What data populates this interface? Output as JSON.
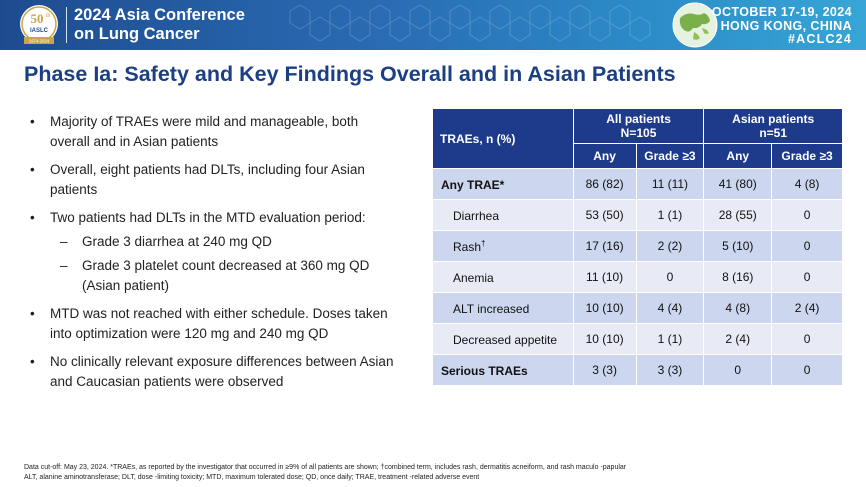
{
  "banner": {
    "anniversary_number": "50",
    "anniversary_suffix": "th",
    "anniversary_org": "IASLC",
    "anniversary_years": "1974-2024",
    "conference_line1": "2024 Asia Conference",
    "conference_line2": "on Lung Cancer",
    "dates": "OCTOBER 17-19, 2024",
    "location": "HONG KONG, CHINA",
    "hashtag": "#ACLC24"
  },
  "slide": {
    "title": "Phase Ia: Safety and Key Findings Overall and in Asian Patients"
  },
  "bullets": {
    "b1": "Majority of TRAEs were mild and manageable, both overall and in Asian patients",
    "b2": "Overall, eight patients had DLTs, including four Asian patients",
    "b3": "Two patients had DLTs in the MTD evaluation period:",
    "b3_sub1": "Grade 3 diarrhea at 240 mg QD",
    "b3_sub2": "Grade 3 platelet count decreased at 360 mg QD (Asian patient)",
    "b4": "MTD was not reached with either schedule. Doses taken into optimization were 120 mg and 240 mg QD",
    "b5": "No clinically relevant exposure differences between Asian and Caucasian patients were observed"
  },
  "table": {
    "corner_header": "TRAEs, n (%)",
    "group_all_line1": "All patients",
    "group_all_line2": "N=105",
    "group_asian_line1": "Asian patients",
    "group_asian_line2": "n=51",
    "col_any": "Any",
    "col_grade3": "Grade ≥3",
    "rows": [
      {
        "label": "Any TRAE*",
        "sup": "",
        "all_any": "86 (82)",
        "all_g3": "11 (11)",
        "asian_any": "41 (80)",
        "asian_g3": "4 (8)"
      },
      {
        "label": "Diarrhea",
        "sup": "",
        "all_any": "53 (50)",
        "all_g3": "1 (1)",
        "asian_any": "28 (55)",
        "asian_g3": "0"
      },
      {
        "label": "Rash",
        "sup": "†",
        "all_any": "17 (16)",
        "all_g3": "2 (2)",
        "asian_any": "5 (10)",
        "asian_g3": "0"
      },
      {
        "label": "Anemia",
        "sup": "",
        "all_any": "11 (10)",
        "all_g3": "0",
        "asian_any": "8 (16)",
        "asian_g3": "0"
      },
      {
        "label": "ALT increased",
        "sup": "",
        "all_any": "10 (10)",
        "all_g3": "4 (4)",
        "asian_any": "4 (8)",
        "asian_g3": "2 (4)"
      },
      {
        "label": "Decreased appetite",
        "sup": "",
        "all_any": "10 (10)",
        "all_g3": "1 (1)",
        "asian_any": "2 (4)",
        "asian_g3": "0"
      },
      {
        "label": "Serious TRAEs",
        "sup": "",
        "all_any": "3 (3)",
        "all_g3": "3 (3)",
        "asian_any": "0",
        "asian_g3": "0"
      }
    ]
  },
  "footnote": {
    "line1": "Data cut-off: May 23, 2024. *TRAEs, as reported by the investigator that occurred in ≥9% of all patients are shown;      †combined term, includes rash, dermatitis acneiform, and rash maculo -papular",
    "line2": "ALT, alanine aminotransferase; DLT, dose -limiting toxicity; MTD, maximum tolerated dose; QD, once daily; TRAE, treatment -related adverse event"
  },
  "colors": {
    "banner_dark": "#1e4b8f",
    "banner_light": "#37a6d6",
    "title_blue": "#1b3f85",
    "table_header": "#1e3a8a",
    "row_dark": "#ccd6ee",
    "row_light": "#e8ebf5"
  }
}
